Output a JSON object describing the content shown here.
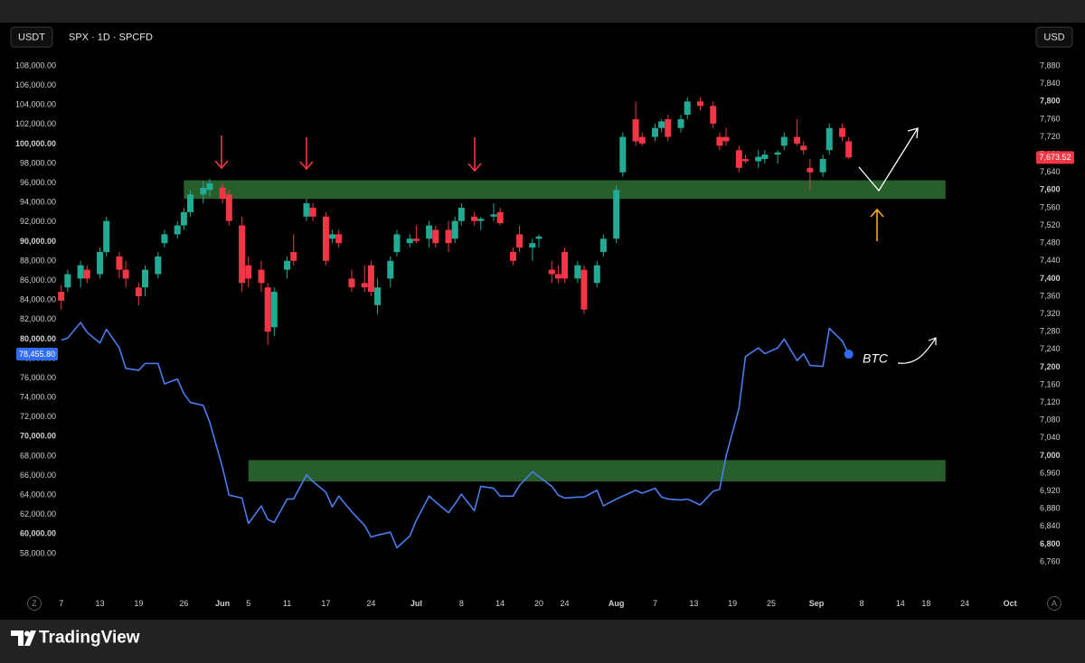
{
  "toolbar": {
    "left": "USDT",
    "right": "USD",
    "zoom": "Z",
    "auto": "A"
  },
  "footer": {
    "brand": "TradingView"
  },
  "chart_data": {
    "type": "combo",
    "title": "SPX · 1D · SPCFD",
    "grid": false,
    "x": [
      7,
      8,
      10,
      11,
      13,
      14,
      16,
      17,
      19,
      20,
      22,
      23,
      25,
      26,
      27,
      29,
      30,
      32,
      33,
      35,
      36,
      38,
      39,
      40,
      42,
      43,
      45,
      46,
      48,
      49,
      50,
      52,
      54,
      55,
      56,
      58,
      59,
      61,
      62,
      64,
      65,
      67,
      68,
      69,
      71,
      72,
      74,
      75,
      77,
      78,
      80,
      81,
      83,
      84,
      85,
      87,
      88,
      90,
      91,
      93,
      94,
      96,
      97,
      99,
      100,
      101,
      103,
      104,
      106,
      108,
      109,
      110,
      112,
      113,
      115,
      116,
      118,
      119,
      121,
      122,
      123,
      125,
      126,
      128,
      129
    ],
    "xlim": [
      6.2,
      157.2
    ],
    "xticks": [
      {
        "value": 7,
        "label": "7"
      },
      {
        "value": 13,
        "label": "13"
      },
      {
        "value": 19,
        "label": "19"
      },
      {
        "value": 26,
        "label": "26"
      },
      {
        "value": 32,
        "label": "Jun"
      },
      {
        "value": 36,
        "label": "5"
      },
      {
        "value": 42,
        "label": "11"
      },
      {
        "value": 48,
        "label": "17"
      },
      {
        "value": 55,
        "label": "24"
      },
      {
        "value": 62,
        "label": "Jul"
      },
      {
        "value": 69,
        "label": "8"
      },
      {
        "value": 75,
        "label": "14"
      },
      {
        "value": 81,
        "label": "20"
      },
      {
        "value": 85,
        "label": "24"
      },
      {
        "value": 93,
        "label": "Aug"
      },
      {
        "value": 99,
        "label": "7"
      },
      {
        "value": 105,
        "label": "13"
      },
      {
        "value": 111,
        "label": "19"
      },
      {
        "value": 117,
        "label": "25"
      },
      {
        "value": 124,
        "label": "Sep"
      },
      {
        "value": 131,
        "label": "8"
      },
      {
        "value": 137,
        "label": "14"
      },
      {
        "value": 141,
        "label": "18"
      },
      {
        "value": 147,
        "label": "24"
      },
      {
        "value": 154,
        "label": "Oct"
      }
    ],
    "ylim": [
      54570,
      109667
    ],
    "yticks": [
      {
        "value": 108000,
        "label": "108,000.00"
      },
      {
        "value": 106000,
        "label": "106,000.00"
      },
      {
        "value": 104000,
        "label": "104,000.00"
      },
      {
        "value": 102000,
        "label": "102,000.00"
      },
      {
        "value": 100000,
        "label": "100,000.00"
      },
      {
        "value": 98000,
        "label": "98,000.00"
      },
      {
        "value": 96000,
        "label": "96,000.00"
      },
      {
        "value": 94000,
        "label": "94,000.00"
      },
      {
        "value": 92000,
        "label": "92,000.00"
      },
      {
        "value": 90000,
        "label": "90,000.00"
      },
      {
        "value": 88000,
        "label": "88,000.00"
      },
      {
        "value": 86000,
        "label": "86,000.00"
      },
      {
        "value": 84000,
        "label": "84,000.00"
      },
      {
        "value": 82000,
        "label": "82,000.00"
      },
      {
        "value": 80000,
        "label": "80,000.00"
      },
      {
        "value": 78000,
        "label": "78,000.00"
      },
      {
        "value": 76000,
        "label": "76,000.00"
      },
      {
        "value": 74000,
        "label": "74,000.00"
      },
      {
        "value": 72000,
        "label": "72,000.00"
      },
      {
        "value": 70000,
        "label": "70,000.00"
      },
      {
        "value": 68000,
        "label": "68,000.00"
      },
      {
        "value": 66000,
        "label": "66,000.00"
      },
      {
        "value": 64000,
        "label": "64,000.00"
      },
      {
        "value": 62000,
        "label": "62,000.00"
      },
      {
        "value": 60000,
        "label": "60,000.00"
      },
      {
        "value": 58000,
        "label": "58,000.00"
      }
    ],
    "y2lim": [
      6703,
      7917
    ],
    "y2ticks": [
      {
        "value": 7880,
        "label": "7,880"
      },
      {
        "value": 7840,
        "label": "7,840"
      },
      {
        "value": 7800,
        "label": "7,800"
      },
      {
        "value": 7760,
        "label": "7,760"
      },
      {
        "value": 7720,
        "label": "7,720"
      },
      {
        "value": 7680,
        "label": "7,680"
      },
      {
        "value": 7640,
        "label": "7,640"
      },
      {
        "value": 7600,
        "label": "7,600"
      },
      {
        "value": 7560,
        "label": "7,560"
      },
      {
        "value": 7520,
        "label": "7,520"
      },
      {
        "value": 7480,
        "label": "7,480"
      },
      {
        "value": 7440,
        "label": "7,440"
      },
      {
        "value": 7400,
        "label": "7,400"
      },
      {
        "value": 7360,
        "label": "7,360"
      },
      {
        "value": 7320,
        "label": "7,320"
      },
      {
        "value": 7280,
        "label": "7,280"
      },
      {
        "value": 7240,
        "label": "7,240"
      },
      {
        "value": 7200,
        "label": "7,200"
      },
      {
        "value": 7160,
        "label": "7,160"
      },
      {
        "value": 7120,
        "label": "7,120"
      },
      {
        "value": 7080,
        "label": "7,080"
      },
      {
        "value": 7040,
        "label": "7,040"
      },
      {
        "value": 7000,
        "label": "7,000"
      },
      {
        "value": 6960,
        "label": "6,960"
      },
      {
        "value": 6920,
        "label": "6,920"
      },
      {
        "value": 6880,
        "label": "6,880"
      },
      {
        "value": 6840,
        "label": "6,840"
      },
      {
        "value": 6800,
        "label": "6,800"
      },
      {
        "value": 6760,
        "label": "6,760"
      }
    ],
    "series": [
      {
        "type": "candlestick",
        "axis": "y2",
        "up_color": "#22ab94",
        "down_color": "#f23645",
        "open": [
          7370,
          7380,
          7400,
          7420,
          7410,
          7460,
          7450,
          7420,
          7380,
          7380,
          7410,
          7480,
          7500,
          7520,
          7550,
          7590,
          7600,
          7605,
          7590,
          7520,
          7430,
          7420,
          7380,
          7290,
          7420,
          7460,
          7540,
          7560,
          7540,
          7490,
          7500,
          7400,
          7390,
          7430,
          7340,
          7400,
          7460,
          7480,
          7490,
          7490,
          7510,
          7510,
          7490,
          7530,
          7540,
          7530,
          7540,
          7550,
          7460,
          7500,
          7470,
          7490,
          7420,
          7410,
          7460,
          7400,
          7420,
          7390,
          7460,
          7490,
          7640,
          7760,
          7720,
          7720,
          7740,
          7760,
          7740,
          7770,
          7800,
          7790,
          7720,
          7720,
          7690,
          7670,
          7665,
          7670,
          7680,
          7700,
          7720,
          7700,
          7650,
          7640,
          7690,
          7740,
          7710
        ],
        "high": [
          7385,
          7420,
          7440,
          7430,
          7470,
          7540,
          7460,
          7440,
          7390,
          7430,
          7460,
          7510,
          7530,
          7560,
          7600,
          7620,
          7625,
          7615,
          7600,
          7540,
          7450,
          7440,
          7390,
          7380,
          7450,
          7500,
          7580,
          7570,
          7550,
          7510,
          7510,
          7420,
          7430,
          7440,
          7400,
          7450,
          7510,
          7500,
          7520,
          7530,
          7520,
          7530,
          7540,
          7570,
          7550,
          7540,
          7570,
          7560,
          7470,
          7520,
          7490,
          7500,
          7440,
          7430,
          7470,
          7440,
          7430,
          7440,
          7500,
          7610,
          7730,
          7800,
          7730,
          7750,
          7760,
          7770,
          7770,
          7810,
          7810,
          7800,
          7730,
          7740,
          7700,
          7680,
          7690,
          7690,
          7690,
          7730,
          7760,
          7710,
          7670,
          7680,
          7750,
          7750,
          7720
        ],
        "low": [
          7330,
          7370,
          7380,
          7390,
          7400,
          7450,
          7400,
          7380,
          7340,
          7360,
          7400,
          7470,
          7490,
          7510,
          7540,
          7570,
          7585,
          7570,
          7520,
          7370,
          7380,
          7370,
          7250,
          7270,
          7400,
          7430,
          7530,
          7530,
          7430,
          7480,
          7470,
          7370,
          7370,
          7360,
          7320,
          7380,
          7450,
          7470,
          7480,
          7470,
          7470,
          7460,
          7480,
          7520,
          7520,
          7510,
          7530,
          7520,
          7430,
          7460,
          7440,
          7470,
          7390,
          7390,
          7390,
          7390,
          7320,
          7380,
          7450,
          7480,
          7630,
          7700,
          7700,
          7710,
          7730,
          7710,
          7730,
          7760,
          7780,
          7740,
          7690,
          7700,
          7640,
          7660,
          7650,
          7660,
          7660,
          7690,
          7700,
          7680,
          7600,
          7630,
          7680,
          7710,
          7670
        ],
        "close": [
          7350,
          7410,
          7430,
          7400,
          7460,
          7530,
          7420,
          7400,
          7360,
          7420,
          7450,
          7500,
          7520,
          7550,
          7590,
          7605,
          7615,
          7580,
          7530,
          7390,
          7400,
          7390,
          7280,
          7370,
          7440,
          7440,
          7570,
          7540,
          7440,
          7500,
          7480,
          7380,
          7380,
          7370,
          7380,
          7440,
          7500,
          7490,
          7485,
          7520,
          7480,
          7480,
          7530,
          7560,
          7530,
          7535,
          7545,
          7525,
          7440,
          7470,
          7480,
          7495,
          7410,
          7400,
          7400,
          7430,
          7330,
          7430,
          7490,
          7600,
          7720,
          7710,
          7705,
          7740,
          7755,
          7720,
          7760,
          7800,
          7790,
          7750,
          7700,
          7710,
          7650,
          7665,
          7675,
          7680,
          7685,
          7720,
          7705,
          7690,
          7640,
          7670,
          7740,
          7720,
          7673.52
        ],
        "value_labels": [
          null,
          null,
          null,
          null,
          null,
          null,
          null,
          null,
          null,
          null,
          null,
          null,
          null,
          null,
          null,
          null,
          null,
          null,
          null,
          null,
          null,
          null,
          null,
          null,
          null,
          null,
          null,
          null,
          null,
          null,
          null,
          null,
          null,
          null,
          null,
          null,
          null,
          null,
          null,
          null,
          null,
          null,
          null,
          null,
          null,
          null,
          null,
          null,
          null,
          null,
          null,
          null,
          null,
          null,
          null,
          null,
          null,
          null,
          null,
          null,
          null,
          null,
          null,
          null,
          null,
          null,
          null,
          null,
          null,
          null,
          null,
          null,
          null,
          null,
          null,
          null,
          null,
          null,
          null,
          null,
          null,
          null,
          null,
          null,
          "7,673.52"
        ]
      },
      {
        "type": "line",
        "name": "BTC",
        "color": "#4a7df0",
        "values": [
          79900,
          80100,
          81700,
          80700,
          79600,
          81000,
          79100,
          77000,
          76800,
          77500,
          77500,
          75400,
          75900,
          74400,
          73500,
          73200,
          71500,
          66800,
          64000,
          63700,
          61100,
          62900,
          61500,
          61200,
          63600,
          63600,
          66100,
          65400,
          64300,
          62800,
          63900,
          62300,
          60900,
          59700,
          59900,
          60200,
          58600,
          59800,
          61400,
          63900,
          63300,
          62200,
          63100,
          64100,
          62400,
          64900,
          64700,
          63900,
          63900,
          65000,
          66400,
          65900,
          64900,
          64000,
          63700,
          63800,
          63800,
          64500,
          62900,
          63600,
          63900,
          64500,
          64200,
          64700,
          63800,
          63600,
          63500,
          63600,
          63000,
          64400,
          64600,
          68000,
          72900,
          78200,
          79100,
          78500,
          79100,
          80000,
          77800,
          78500,
          77300,
          77200,
          81100,
          79800,
          78455.8
        ],
        "value_labels": [
          null,
          null,
          null,
          null,
          null,
          null,
          null,
          null,
          null,
          null,
          null,
          null,
          null,
          null,
          null,
          null,
          null,
          null,
          null,
          null,
          null,
          null,
          null,
          null,
          null,
          null,
          null,
          null,
          null,
          null,
          null,
          null,
          null,
          null,
          null,
          null,
          null,
          null,
          null,
          null,
          null,
          null,
          null,
          null,
          null,
          null,
          null,
          null,
          null,
          null,
          null,
          null,
          null,
          null,
          null,
          null,
          null,
          null,
          null,
          null,
          null,
          null,
          null,
          null,
          null,
          null,
          null,
          null,
          null,
          null,
          null,
          null,
          null,
          null,
          null,
          null,
          null,
          null,
          null,
          null,
          null,
          null,
          null,
          null,
          "78,455.80"
        ]
      }
    ],
    "bands": [
      {
        "axis": "y2",
        "y": [
          7580,
          7622
        ],
        "x": [
          26,
          144
        ],
        "color": "#2f6f34"
      },
      {
        "axis": "y",
        "y": [
          65400,
          67600
        ],
        "x": [
          36,
          144
        ],
        "color": "#2f6f34"
      }
    ]
  }
}
